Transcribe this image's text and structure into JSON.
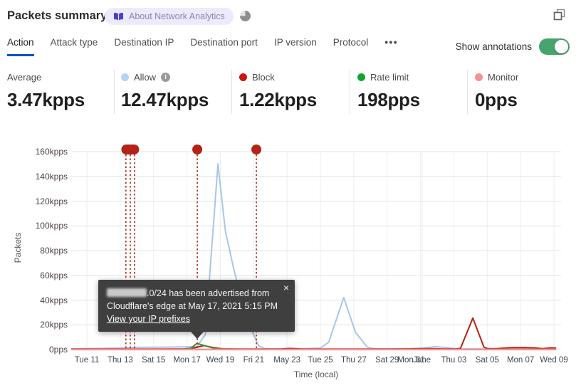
{
  "header": {
    "title": "Packets summary",
    "badge_label": "About Network Analytics"
  },
  "tabs": {
    "items": [
      {
        "label": "Action",
        "active": true
      },
      {
        "label": "Attack type",
        "active": false
      },
      {
        "label": "Destination IP",
        "active": false
      },
      {
        "label": "Destination port",
        "active": false
      },
      {
        "label": "IP version",
        "active": false
      },
      {
        "label": "Protocol",
        "active": false
      }
    ],
    "more_label": "•••",
    "show_annotations_label": "Show annotations",
    "toggle_on": true
  },
  "colors": {
    "toggle_on": "#46a46c",
    "tab_active_underline": "#0051c3",
    "annotation_red": "#b42318"
  },
  "stats": [
    {
      "label": "Average",
      "value": "3.47kpps",
      "dot": null
    },
    {
      "label": "Allow",
      "value": "12.47kpps",
      "dot": "#b6d3f0",
      "info": "i"
    },
    {
      "label": "Block",
      "value": "1.22kpps",
      "dot": "#c6180e"
    },
    {
      "label": "Rate limit",
      "value": "198pps",
      "dot": "#12a52e"
    },
    {
      "label": "Monitor",
      "value": "0pps",
      "dot": "#f79292"
    }
  ],
  "tooltip": {
    "line1_suffix": ".0/24 has been advertised from",
    "line2": "Cloudflare's edge at May 17, 2021 5:15 PM",
    "link": "View your IP prefixes",
    "close": "×"
  },
  "chart_data": {
    "type": "line",
    "xlabel": "Time (local)",
    "ylabel": "Packets",
    "unit": "kpps",
    "ylim": [
      0,
      160
    ],
    "grid": true,
    "y_ticks": [
      {
        "label": "160kpps",
        "value": 160
      },
      {
        "label": "140kpps",
        "value": 140
      },
      {
        "label": "120kpps",
        "value": 120
      },
      {
        "label": "100kpps",
        "value": 100
      },
      {
        "label": "80kpps",
        "value": 80
      },
      {
        "label": "60kpps",
        "value": 60
      },
      {
        "label": "40kpps",
        "value": 40
      },
      {
        "label": "20kpps",
        "value": 20
      },
      {
        "label": "0pps",
        "value": 0
      }
    ],
    "x_tick_labels": [
      "Tue 11",
      "Thu 13",
      "Sat 15",
      "Mon 17",
      "Wed 19",
      "Fri 21",
      "May 23",
      "Tue 25",
      "Thu 27",
      "Sat 29",
      "Mon 31",
      "Thu 03",
      "Sat 05",
      "Mon 07",
      "Wed 09"
    ],
    "month_label": "June",
    "series": [
      {
        "name": "Allow",
        "color": "#a9c6e9",
        "width": 2,
        "points": [
          [
            -0.45,
            0.6
          ],
          [
            0,
            0.8
          ],
          [
            0.5,
            1.0
          ],
          [
            1,
            1.4
          ],
          [
            1.5,
            1.7
          ],
          [
            2,
            1.9
          ],
          [
            2.5,
            2.0
          ],
          [
            3,
            2.2
          ],
          [
            3.3,
            2.5
          ],
          [
            3.55,
            12
          ],
          [
            3.93,
            150
          ],
          [
            4.15,
            96
          ],
          [
            4.38,
            68
          ],
          [
            4.65,
            38
          ],
          [
            4.9,
            18
          ],
          [
            5.15,
            3
          ],
          [
            5.35,
            0.6
          ],
          [
            6,
            0.5
          ],
          [
            6.5,
            0.7
          ],
          [
            7,
            1.2
          ],
          [
            7.25,
            6
          ],
          [
            7.7,
            42
          ],
          [
            8.05,
            14
          ],
          [
            8.4,
            2
          ],
          [
            8.6,
            0.7
          ],
          [
            9,
            0.5
          ],
          [
            9.6,
            0.6
          ],
          [
            10.1,
            1.4
          ],
          [
            10.45,
            2.3
          ],
          [
            10.8,
            1.6
          ],
          [
            11.1,
            0.6
          ],
          [
            11.6,
            0.5
          ],
          [
            12,
            0.5
          ],
          [
            13,
            0.5
          ],
          [
            14.05,
            0.5
          ]
        ]
      },
      {
        "name": "Block",
        "color": "#b32117",
        "width": 2,
        "points": [
          [
            -0.45,
            0.4
          ],
          [
            0,
            0.4
          ],
          [
            1,
            0.4
          ],
          [
            2,
            0.4
          ],
          [
            2.9,
            0.5
          ],
          [
            3.2,
            1.2
          ],
          [
            3.5,
            3.2
          ],
          [
            3.75,
            1.8
          ],
          [
            4.05,
            0.6
          ],
          [
            4.5,
            0.4
          ],
          [
            5,
            0.4
          ],
          [
            5.8,
            0.4
          ],
          [
            6.1,
            0.9
          ],
          [
            6.4,
            0.5
          ],
          [
            7,
            0.4
          ],
          [
            8,
            0.4
          ],
          [
            9,
            0.4
          ],
          [
            9.8,
            0.6
          ],
          [
            10.3,
            0.7
          ],
          [
            10.7,
            0.5
          ],
          [
            11.05,
            0.5
          ],
          [
            11.2,
            1
          ],
          [
            11.57,
            25.5
          ],
          [
            11.9,
            2
          ],
          [
            12.02,
            0.7
          ],
          [
            12.3,
            0.8
          ],
          [
            12.7,
            1.5
          ],
          [
            13.1,
            1.6
          ],
          [
            13.45,
            1.3
          ],
          [
            13.65,
            0.7
          ],
          [
            13.9,
            1.4
          ],
          [
            14.05,
            1.2
          ]
        ]
      },
      {
        "name": "Rate limit",
        "color": "#468f35",
        "width": 2,
        "points": [
          [
            2.85,
            0.2
          ],
          [
            3.1,
            0.8
          ],
          [
            3.3,
            5.0
          ],
          [
            3.6,
            2.6
          ],
          [
            3.85,
            0.8
          ],
          [
            4.1,
            0.2
          ]
        ]
      },
      {
        "name": "Monitor",
        "color": "#f5918f",
        "width": 2.5,
        "points": [
          [
            -0.45,
            0.05
          ],
          [
            14.05,
            0.05
          ]
        ]
      }
    ],
    "annotations": {
      "color": "#b42318",
      "lines_x": [
        1.17,
        1.3,
        1.43,
        3.31,
        5.08
      ],
      "markers": [
        {
          "x": 1.3,
          "cluster": true
        },
        {
          "x": 3.31,
          "cluster": false
        },
        {
          "x": 5.08,
          "cluster": false
        }
      ]
    }
  }
}
